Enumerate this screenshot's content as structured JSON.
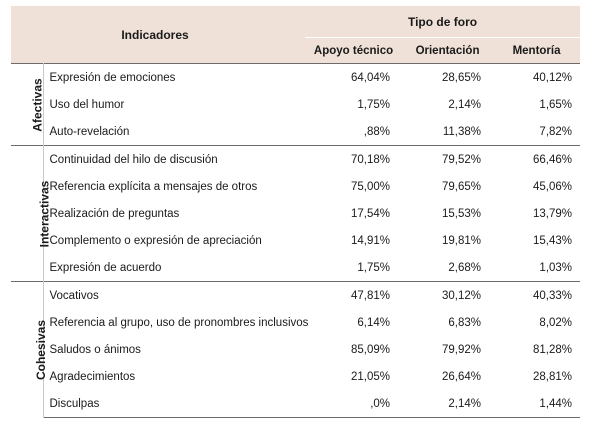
{
  "header": {
    "indicators": "Indicadores",
    "forum_type": "Tipo de foro",
    "columns": [
      "Apoyo técnico",
      "Orientación",
      "Mentoría"
    ]
  },
  "groups": [
    {
      "name": "Afectivas",
      "rows": [
        {
          "label": "Expresión de emociones",
          "values": [
            "64,04%",
            "28,65%",
            "40,12%"
          ]
        },
        {
          "label": "Uso del humor",
          "values": [
            "1,75%",
            "2,14%",
            "1,65%"
          ]
        },
        {
          "label": "Auto-revelación",
          "values": [
            ",88%",
            "11,38%",
            "7,82%"
          ]
        }
      ]
    },
    {
      "name": "Interactivas",
      "rows": [
        {
          "label": "Continuidad del hilo de discusión",
          "values": [
            "70,18%",
            "79,52%",
            "66,46%"
          ]
        },
        {
          "label": "Referencia explícita a mensajes de otros",
          "values": [
            "75,00%",
            "79,65%",
            "45,06%"
          ]
        },
        {
          "label": "Realización de preguntas",
          "values": [
            "17,54%",
            "15,53%",
            "13,79%"
          ]
        },
        {
          "label": "Complemento o expresión de apreciación",
          "values": [
            "14,91%",
            "19,81%",
            "15,43%"
          ]
        },
        {
          "label": "Expresión de acuerdo",
          "values": [
            "1,75%",
            "2,68%",
            "1,03%"
          ]
        }
      ]
    },
    {
      "name": "Cohesivas",
      "rows": [
        {
          "label": "Vocativos",
          "values": [
            "47,81%",
            "30,12%",
            "40,33%"
          ]
        },
        {
          "label": "Referencia al grupo, uso de pronombres inclusivos",
          "values": [
            "6,14%",
            "6,83%",
            "8,02%"
          ]
        },
        {
          "label": "Saludos o ánimos",
          "values": [
            "85,09%",
            "79,92%",
            "81,28%"
          ]
        },
        {
          "label": "Agradecimientos",
          "values": [
            "21,05%",
            "26,64%",
            "28,81%"
          ]
        },
        {
          "label": "Disculpas",
          "values": [
            ",0%",
            "2,14%",
            "1,44%"
          ]
        }
      ]
    }
  ],
  "colors": {
    "header_bg": "#efe1d8",
    "rule": "#6b6b6b"
  }
}
